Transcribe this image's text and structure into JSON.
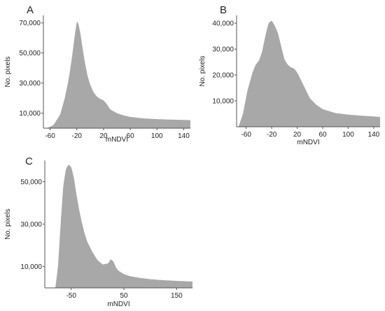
{
  "chart_data": [
    {
      "panel_label": "A",
      "type": "area",
      "xlabel": "mNDVI",
      "ylabel": "No. pixels",
      "xlim": [
        -70,
        150
      ],
      "ylim": [
        0,
        75000
      ],
      "xticks": [
        -60,
        -20,
        20,
        60,
        100,
        140
      ],
      "xtick_labels": [
        "-60",
        "-20",
        "20",
        "60",
        "100",
        "140"
      ],
      "yticks": [
        10000,
        30000,
        50000,
        70000
      ],
      "ytick_labels": [
        "10,000",
        "30,000",
        "50,000",
        "70,000"
      ],
      "fill_color": "#a8a8a8",
      "x": [
        -65,
        -55,
        -45,
        -38,
        -32,
        -27,
        -23,
        -20,
        -18,
        -15,
        -12,
        -8,
        -4,
        0,
        5,
        10,
        15,
        20,
        25,
        30,
        40,
        50,
        60,
        80,
        100,
        120,
        140,
        150
      ],
      "y": [
        0,
        2000,
        9000,
        20000,
        33000,
        48000,
        62000,
        71000,
        70000,
        64000,
        55000,
        44000,
        35000,
        29000,
        24000,
        21000,
        19500,
        18500,
        16000,
        12500,
        10000,
        8500,
        7500,
        6500,
        6000,
        5700,
        5500,
        5300
      ]
    },
    {
      "panel_label": "B",
      "type": "area",
      "xlabel": "mNDVI",
      "ylabel": "No. pixels",
      "xlim": [
        -75,
        150
      ],
      "ylim": [
        0,
        43000
      ],
      "xticks": [
        -60,
        -20,
        20,
        60,
        100,
        140
      ],
      "xtick_labels": [
        "-60",
        "-20",
        "20",
        "60",
        "100",
        "140"
      ],
      "yticks": [
        10000,
        20000,
        30000,
        40000
      ],
      "ytick_labels": [
        "10,000",
        "20,000",
        "30,000",
        "40,000"
      ],
      "fill_color": "#a8a8a8",
      "x": [
        -72,
        -65,
        -58,
        -50,
        -45,
        -40,
        -35,
        -30,
        -25,
        -20,
        -15,
        -10,
        -5,
        0,
        5,
        10,
        15,
        20,
        25,
        30,
        40,
        50,
        60,
        80,
        100,
        120,
        140,
        150
      ],
      "y": [
        0,
        5000,
        14000,
        21000,
        24000,
        25500,
        29000,
        35000,
        40000,
        41000,
        39000,
        36000,
        31000,
        26000,
        24000,
        23000,
        22500,
        21000,
        18500,
        16000,
        11000,
        8500,
        6800,
        5300,
        4700,
        4300,
        4000,
        3800
      ]
    },
    {
      "panel_label": "C",
      "type": "area",
      "xlabel": "mNDVI",
      "ylabel": "No. pixels",
      "xlim": [
        -100,
        180
      ],
      "ylim": [
        0,
        60000
      ],
      "xticks": [
        -50,
        50,
        150
      ],
      "xtick_labels": [
        "-50",
        "50",
        "150"
      ],
      "yticks": [
        10000,
        30000,
        50000
      ],
      "ytick_labels": [
        "10,000",
        "30,000",
        "50,000"
      ],
      "fill_color": "#a8a8a8",
      "x": [
        -80,
        -75,
        -70,
        -65,
        -60,
        -55,
        -50,
        -45,
        -40,
        -35,
        -30,
        -25,
        -20,
        -10,
        0,
        10,
        20,
        25,
        30,
        35,
        40,
        50,
        60,
        80,
        100,
        120,
        150,
        180
      ],
      "y": [
        0,
        10000,
        30000,
        48000,
        56000,
        58000,
        57000,
        52000,
        44000,
        37000,
        31000,
        26000,
        22000,
        17000,
        13000,
        11000,
        11500,
        13500,
        12500,
        9500,
        8000,
        6500,
        5600,
        4700,
        4100,
        3700,
        3300,
        3000
      ]
    }
  ]
}
